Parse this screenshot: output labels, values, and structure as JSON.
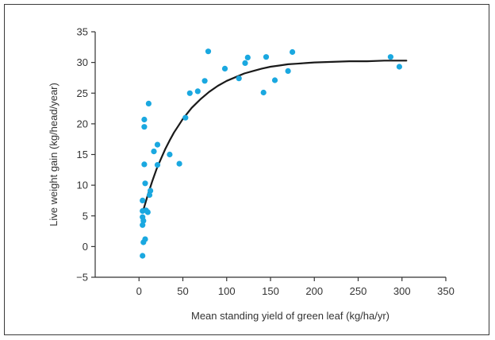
{
  "chart_data": {
    "type": "scatter",
    "xlabel": "Mean standing yield of green leaf (kg/ha/yr)",
    "ylabel": "Live weight gain (kg/head/year)",
    "xlim": [
      -50,
      350
    ],
    "ylim": [
      -5,
      35
    ],
    "xticks": [
      0,
      50,
      100,
      150,
      200,
      250,
      300,
      350
    ],
    "yticks": [
      -5,
      0,
      5,
      10,
      15,
      20,
      25,
      30,
      35
    ],
    "xtick_labels": [
      "0",
      "50",
      "100",
      "150",
      "200",
      "250",
      "300",
      "350"
    ],
    "ytick_labels": [
      "−5",
      "0",
      "5",
      "10",
      "15",
      "20",
      "25",
      "30",
      "35"
    ],
    "grid": false,
    "point_color": "#1aa8e0",
    "curve_color": "#1a1a1a",
    "points": [
      [
        4,
        -1.5
      ],
      [
        5,
        0.7
      ],
      [
        7,
        1.2
      ],
      [
        4,
        3.5
      ],
      [
        5,
        4.2
      ],
      [
        4,
        4.8
      ],
      [
        4,
        5.8
      ],
      [
        8,
        5.9
      ],
      [
        10,
        5.6
      ],
      [
        4,
        7.5
      ],
      [
        7,
        10.3
      ],
      [
        12,
        8.4
      ],
      [
        13,
        9.1
      ],
      [
        6,
        13.4
      ],
      [
        6,
        19.5
      ],
      [
        6,
        20.7
      ],
      [
        11,
        23.3
      ],
      [
        17,
        15.5
      ],
      [
        21,
        16.6
      ],
      [
        21,
        13.3
      ],
      [
        35,
        15.0
      ],
      [
        46,
        13.5
      ],
      [
        53,
        21.0
      ],
      [
        58,
        25.0
      ],
      [
        67,
        25.3
      ],
      [
        75,
        27.0
      ],
      [
        79,
        31.8
      ],
      [
        98,
        29.0
      ],
      [
        114,
        27.4
      ],
      [
        121,
        29.9
      ],
      [
        124,
        30.8
      ],
      [
        142,
        25.1
      ],
      [
        145,
        30.9
      ],
      [
        155,
        27.1
      ],
      [
        170,
        28.6
      ],
      [
        175,
        31.7
      ],
      [
        287,
        30.9
      ],
      [
        297,
        29.3
      ]
    ],
    "curve": [
      [
        5,
        6.0
      ],
      [
        10,
        8.4
      ],
      [
        15,
        10.6
      ],
      [
        20,
        12.6
      ],
      [
        25,
        14.3
      ],
      [
        30,
        15.9
      ],
      [
        35,
        17.3
      ],
      [
        40,
        18.6
      ],
      [
        45,
        19.7
      ],
      [
        50,
        20.8
      ],
      [
        60,
        22.6
      ],
      [
        70,
        24.0
      ],
      [
        80,
        25.2
      ],
      [
        90,
        26.2
      ],
      [
        100,
        27.0
      ],
      [
        110,
        27.6
      ],
      [
        120,
        28.2
      ],
      [
        130,
        28.6
      ],
      [
        140,
        29.0
      ],
      [
        150,
        29.3
      ],
      [
        160,
        29.5
      ],
      [
        170,
        29.7
      ],
      [
        180,
        29.8
      ],
      [
        190,
        29.9
      ],
      [
        200,
        30.0
      ],
      [
        220,
        30.1
      ],
      [
        240,
        30.2
      ],
      [
        260,
        30.2
      ],
      [
        280,
        30.3
      ],
      [
        300,
        30.3
      ],
      [
        305,
        30.3
      ]
    ]
  }
}
